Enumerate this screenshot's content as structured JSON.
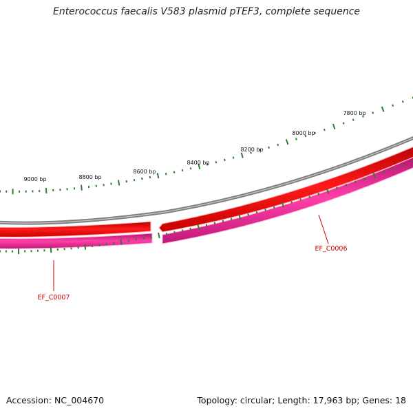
{
  "title": "Enterococcus faecalis V583 plasmid pTEF3, complete sequence",
  "accession_text": "Accession: NC_004670",
  "summary_text": "Topology: circular; Length: 17,963 bp; Genes: 18",
  "colors": {
    "backbone": "#808080",
    "forward_gene": "#ee0000",
    "reverse_gene": "#e81c8a",
    "ticks": "#2e7d2e",
    "gene_label": "#cc0000"
  },
  "genes": [
    {
      "name": "EF_C0006",
      "strand": "forward"
    },
    {
      "name": "EF_C0007",
      "strand": "reverse"
    }
  ],
  "tick_labels": [
    "7800 bp",
    "8000 bp",
    "8200 bp",
    "8400 bp",
    "8600 bp",
    "8800 bp",
    "9000 bp"
  ]
}
